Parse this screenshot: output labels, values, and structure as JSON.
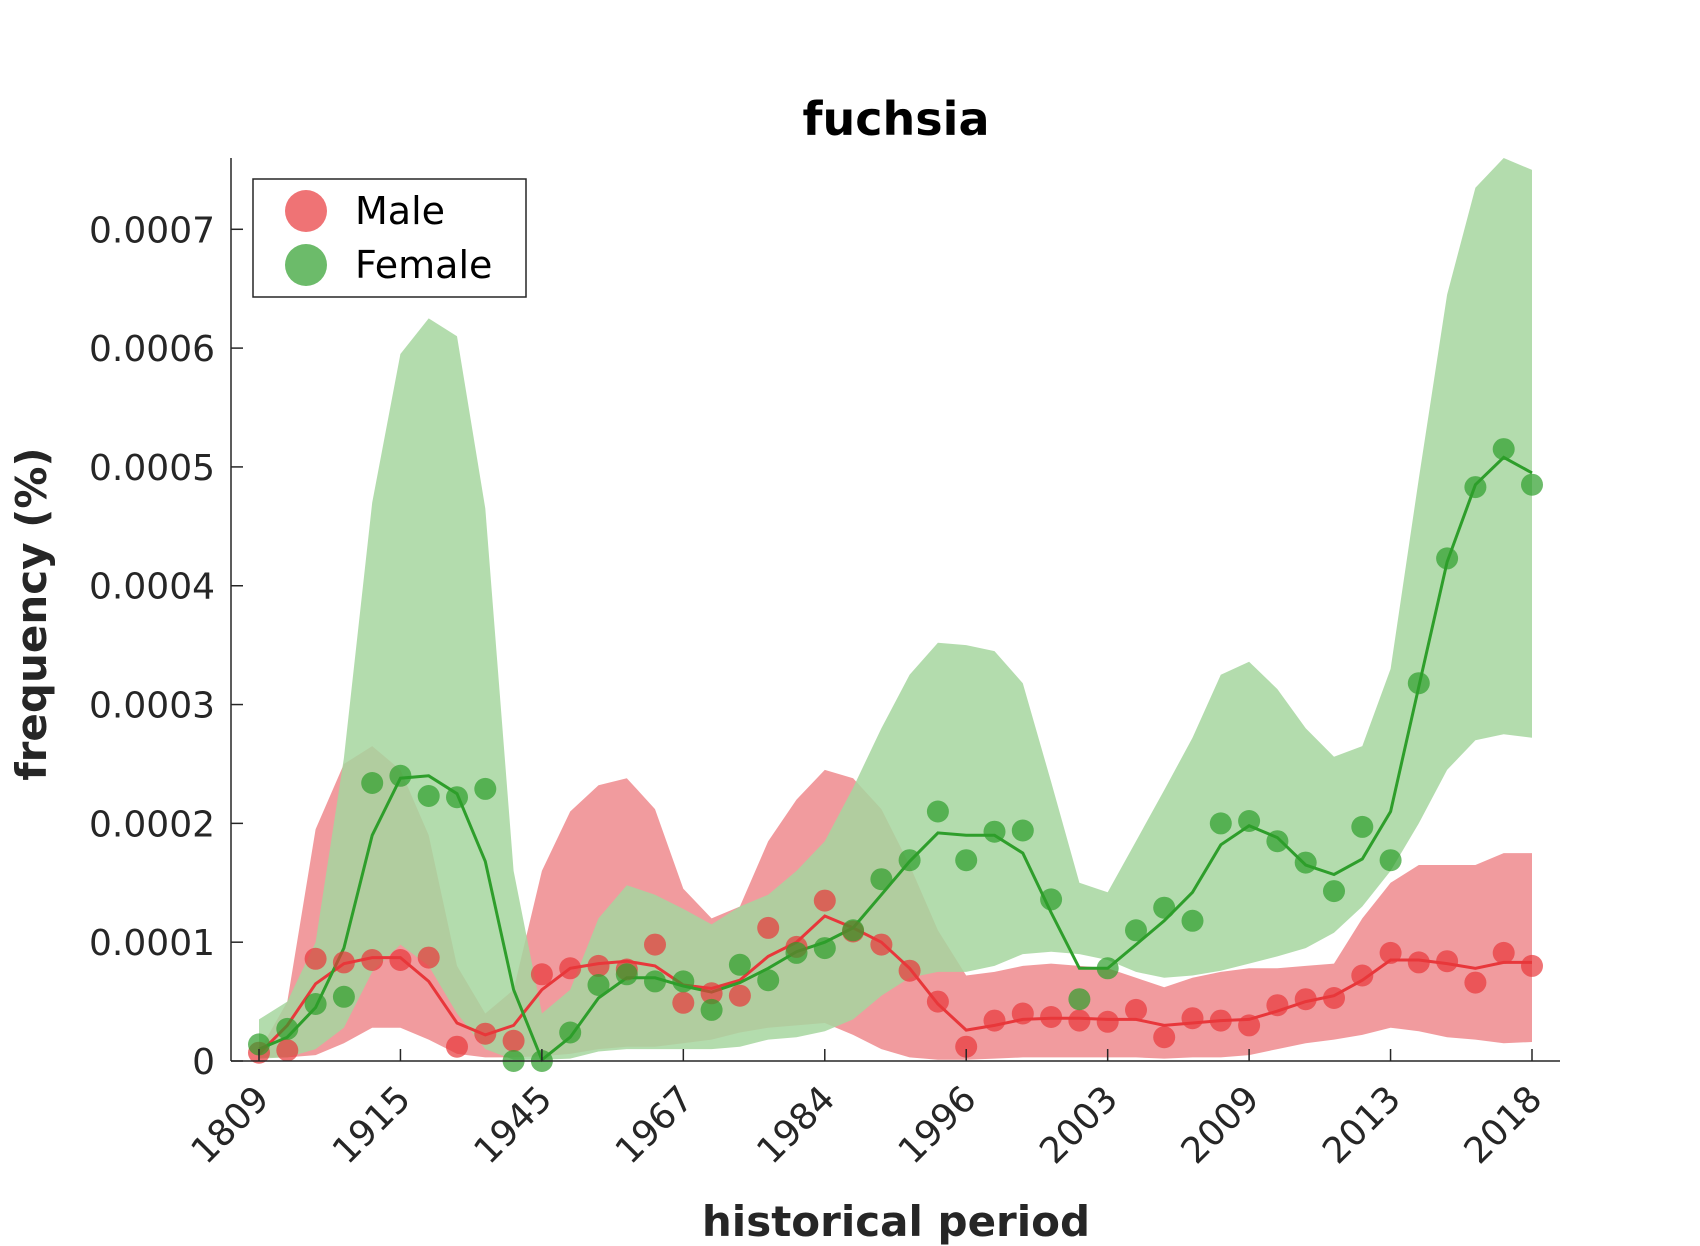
{
  "chart_data": {
    "type": "line",
    "title": "fuchsia",
    "xlabel": "historical period",
    "ylabel": "frequency (%)",
    "x_tick_labels": [
      "1809",
      "1915",
      "1945",
      "1967",
      "1984",
      "1996",
      "2003",
      "2009",
      "2013",
      "2018"
    ],
    "y_ticks": [
      0,
      0.0001,
      0.0002,
      0.0003,
      0.0004,
      0.0005,
      0.0006,
      0.0007
    ],
    "y_tick_labels": [
      "0",
      "0.0001",
      "0.0002",
      "0.0003",
      "0.0004",
      "0.0005",
      "0.0006",
      "0.0007"
    ],
    "ylim": [
      0,
      0.00076
    ],
    "grid": false,
    "legend_position": "top-left",
    "points_per_period": 5,
    "series": [
      {
        "name": "Male",
        "color": "#e8373b",
        "band_color": "#ee8a8d",
        "points": [
          7e-06,
          9e-06,
          8.6e-05,
          8.3e-05,
          8.5e-05,
          8.5e-05,
          8.7e-05,
          1.2e-05,
          2.3e-05,
          1.7e-05,
          7.3e-05,
          7.8e-05,
          8e-05,
          7.7e-05,
          9.8e-05,
          4.9e-05,
          5.7e-05,
          5.5e-05,
          0.000112,
          9.6e-05,
          0.000135,
          0.000109,
          9.8e-05,
          7.6e-05,
          5e-05,
          1.2e-05,
          3.4e-05,
          4e-05,
          3.7e-05,
          3.4e-05,
          3.3e-05,
          4.3e-05,
          2e-05,
          3.6e-05,
          3.4e-05,
          3e-05,
          4.7e-05,
          5.2e-05,
          5.3e-05,
          7.2e-05,
          9.1e-05,
          8.3e-05,
          8.4e-05,
          6.6e-05,
          9.1e-05,
          8e-05
        ],
        "smooth": [
          6e-06,
          3e-05,
          6.5e-05,
          8.2e-05,
          8.7e-05,
          8.7e-05,
          6.7e-05,
          3.2e-05,
          2.2e-05,
          3e-05,
          6e-05,
          7.8e-05,
          8.2e-05,
          8.4e-05,
          8e-05,
          6.4e-05,
          6.1e-05,
          6.8e-05,
          8.8e-05,
          0.0001,
          0.000122,
          0.000112,
          0.0001,
          7.8e-05,
          4.8e-05,
          2.6e-05,
          3e-05,
          3.5e-05,
          3.6e-05,
          3.6e-05,
          3.5e-05,
          3.5e-05,
          3e-05,
          3.2e-05,
          3.4e-05,
          3.5e-05,
          4.2e-05,
          5e-05,
          5.5e-05,
          6.8e-05,
          8.5e-05,
          8.5e-05,
          8.2e-05,
          7.8e-05,
          8.3e-05,
          8.3e-05
        ],
        "upper": [
          8e-06,
          5e-05,
          0.000195,
          0.00025,
          0.000265,
          0.000245,
          0.00019,
          8e-05,
          4e-05,
          6e-05,
          0.00016,
          0.00021,
          0.000232,
          0.000238,
          0.000212,
          0.000145,
          0.00012,
          0.00013,
          0.000185,
          0.00022,
          0.000245,
          0.000238,
          0.000212,
          0.000165,
          0.00011,
          7.2e-05,
          7.5e-05,
          8e-05,
          8.2e-05,
          8e-05,
          7.8e-05,
          7e-05,
          6.2e-05,
          7e-05,
          7.5e-05,
          7.8e-05,
          7.8e-05,
          8e-05,
          8.2e-05,
          0.00012,
          0.00015,
          0.000165,
          0.000165,
          0.000165,
          0.000175,
          0.000175
        ],
        "lower": [
          3e-06,
          3e-06,
          5e-06,
          1.5e-05,
          2.8e-05,
          2.8e-05,
          1.8e-05,
          6e-06,
          3e-06,
          3e-06,
          4e-06,
          6e-06,
          1e-05,
          1.2e-05,
          1.2e-05,
          1.5e-05,
          1.8e-05,
          2.4e-05,
          2.8e-05,
          3e-05,
          3.2e-05,
          2.2e-05,
          1e-05,
          3e-06,
          1e-06,
          1e-06,
          2e-06,
          3e-06,
          3e-06,
          3e-06,
          3e-06,
          3e-06,
          2e-06,
          3e-06,
          3e-06,
          5e-06,
          1e-05,
          1.5e-05,
          1.8e-05,
          2.2e-05,
          2.8e-05,
          2.5e-05,
          2e-05,
          1.8e-05,
          1.5e-05,
          1.6e-05
        ]
      },
      {
        "name": "Female",
        "color": "#2e9e2b",
        "band_color": "#a6d69f",
        "points": [
          1.4e-05,
          2.7e-05,
          4.8e-05,
          5.4e-05,
          0.000234,
          0.00024,
          0.000223,
          0.000222,
          0.000229,
          0.0,
          0.0,
          2.4e-05,
          6.4e-05,
          7.3e-05,
          6.7e-05,
          6.7e-05,
          4.3e-05,
          8.1e-05,
          6.8e-05,
          9.1e-05,
          9.5e-05,
          0.00011,
          0.000153,
          0.000169,
          0.00021,
          0.000169,
          0.000193,
          0.000194,
          0.000136,
          5.2e-05,
          7.8e-05,
          0.00011,
          0.000129,
          0.000118,
          0.0002,
          0.000202,
          0.000185,
          0.000167,
          0.000143,
          0.000197,
          0.000169,
          0.000318,
          0.000423,
          0.000483,
          0.000515,
          0.000485
        ],
        "smooth": [
          1e-05,
          2e-05,
          4.5e-05,
          9.5e-05,
          0.00019,
          0.000238,
          0.00024,
          0.000225,
          0.000168,
          6e-05,
          1e-06,
          2e-05,
          5.3e-05,
          7e-05,
          7e-05,
          6.3e-05,
          5.8e-05,
          6.6e-05,
          7.8e-05,
          9.2e-05,
          0.0001,
          0.000112,
          0.00014,
          0.000168,
          0.000192,
          0.00019,
          0.00019,
          0.000175,
          0.000125,
          7.8e-05,
          7.8e-05,
          9.8e-05,
          0.000118,
          0.000142,
          0.000182,
          0.000198,
          0.000188,
          0.000165,
          0.000157,
          0.00017,
          0.00021,
          0.000315,
          0.00042,
          0.000485,
          0.000508,
          0.000495
        ],
        "upper": [
          3.5e-05,
          5e-05,
          0.0001,
          0.000255,
          0.00047,
          0.000595,
          0.000625,
          0.00061,
          0.000465,
          0.00016,
          4e-05,
          6e-05,
          0.00012,
          0.000148,
          0.00014,
          0.000128,
          0.000115,
          0.00013,
          0.00014,
          0.00016,
          0.000185,
          0.00023,
          0.00028,
          0.000325,
          0.000352,
          0.00035,
          0.000345,
          0.000318,
          0.000235,
          0.00015,
          0.000142,
          0.000185,
          0.000228,
          0.000272,
          0.000325,
          0.000336,
          0.000313,
          0.00028,
          0.000256,
          0.000265,
          0.00033,
          0.00049,
          0.000645,
          0.000735,
          0.00076,
          0.00075
        ],
        "lower": [
          2e-06,
          3e-06,
          1e-05,
          2.8e-05,
          7.5e-05,
          9.8e-05,
          8e-05,
          4e-05,
          1e-05,
          1e-06,
          1e-06,
          2e-06,
          8e-06,
          1e-05,
          1e-05,
          1e-05,
          1e-05,
          1.2e-05,
          1.8e-05,
          2e-05,
          2.5e-05,
          3.5e-05,
          5.5e-05,
          7e-05,
          7.5e-05,
          7.5e-05,
          8e-05,
          9e-05,
          9.2e-05,
          9e-05,
          8.5e-05,
          7.5e-05,
          7e-05,
          7.2e-05,
          7.6e-05,
          8.2e-05,
          8.8e-05,
          9.5e-05,
          0.000108,
          0.00013,
          0.00016,
          0.0002,
          0.000245,
          0.00027,
          0.000275,
          0.000272
        ]
      }
    ]
  }
}
